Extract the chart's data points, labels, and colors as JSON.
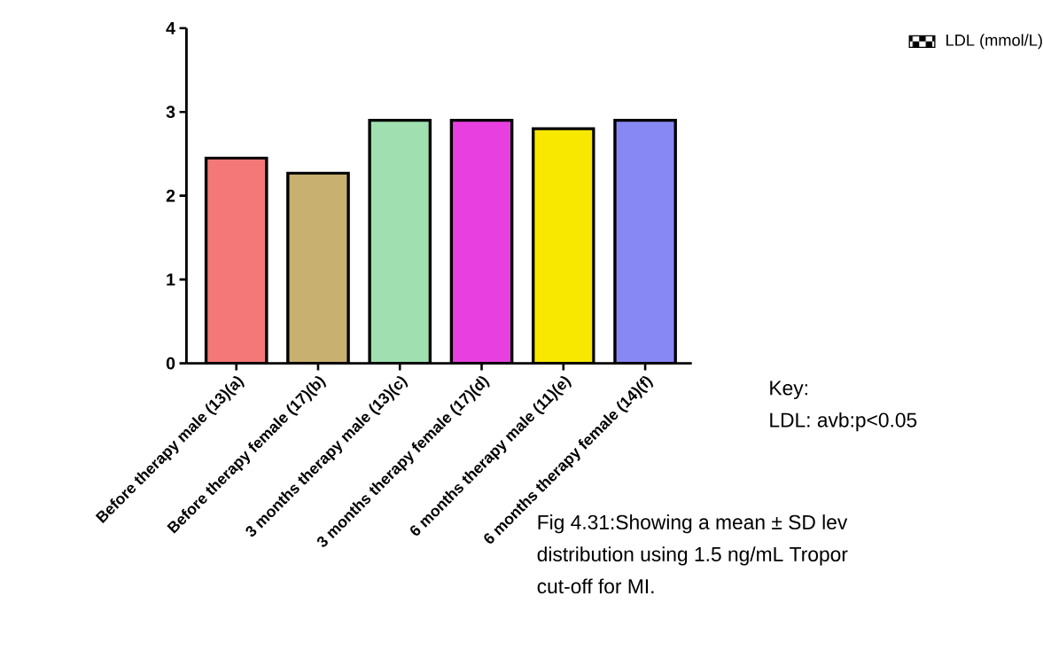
{
  "chart_data": {
    "type": "bar",
    "categories": [
      "Before therapy male (13)(a)",
      "Before therapy female (17)(b)",
      "3 months therapy male (13)(c)",
      "3 months therapy female (17)(d)",
      "6 months therapy male (11)(e)",
      "6 months therapy female (14)(f)"
    ],
    "series": [
      {
        "name": "LDL (mmol/L)",
        "values": [
          2.45,
          2.27,
          2.9,
          2.9,
          2.8,
          2.9
        ]
      }
    ],
    "colors": [
      "#f47878",
      "#c8b070",
      "#a0e0b0",
      "#e840e0",
      "#f8e800",
      "#8888f4"
    ],
    "ylim": [
      0,
      4
    ],
    "yticks": [
      0,
      1,
      2,
      3,
      4
    ],
    "legend": "top right",
    "grid": false,
    "annotations": [
      "Key:",
      "LDL: avb:p<0.05",
      "Fig 4.31:Showing a mean ± SD lev",
      "distribution using 1.5 ng/mL Tropor",
      "cut-off for MI."
    ]
  }
}
